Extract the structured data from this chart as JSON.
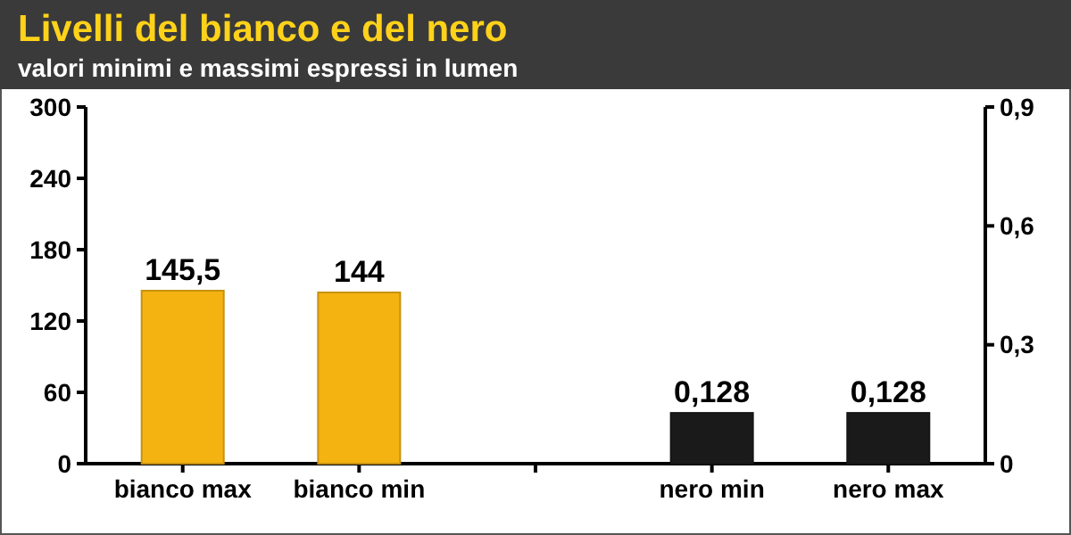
{
  "chart_data": {
    "type": "bar",
    "title": "Livelli del bianco e del nero",
    "subtitle": "valori minimi e massimi espressi in lumen",
    "categories": [
      "bianco max",
      "bianco min",
      null,
      "nero min",
      "nero max"
    ],
    "series": [
      {
        "color": "#f5b312",
        "values": [
          145.5,
          144,
          null,
          null,
          null
        ],
        "value_labels": [
          "145,5",
          "144",
          null,
          null,
          null
        ]
      },
      {
        "color": "#1a1a1a",
        "axis": "y2",
        "values": [
          null,
          null,
          null,
          0.128,
          0.128
        ],
        "value_labels": [
          null,
          null,
          null,
          "0,128",
          "0,128"
        ]
      }
    ],
    "ylim": [
      0,
      300
    ],
    "yticks": [
      0,
      60,
      120,
      180,
      240,
      300
    ],
    "y2lim": [
      0,
      0.9
    ],
    "y2ticks": [
      0,
      {
        "value": 0.3,
        "label": "0,3"
      },
      {
        "value": 0.6,
        "label": "0,6"
      },
      {
        "value": 0.9,
        "label": "0,9"
      }
    ],
    "grid": false
  }
}
